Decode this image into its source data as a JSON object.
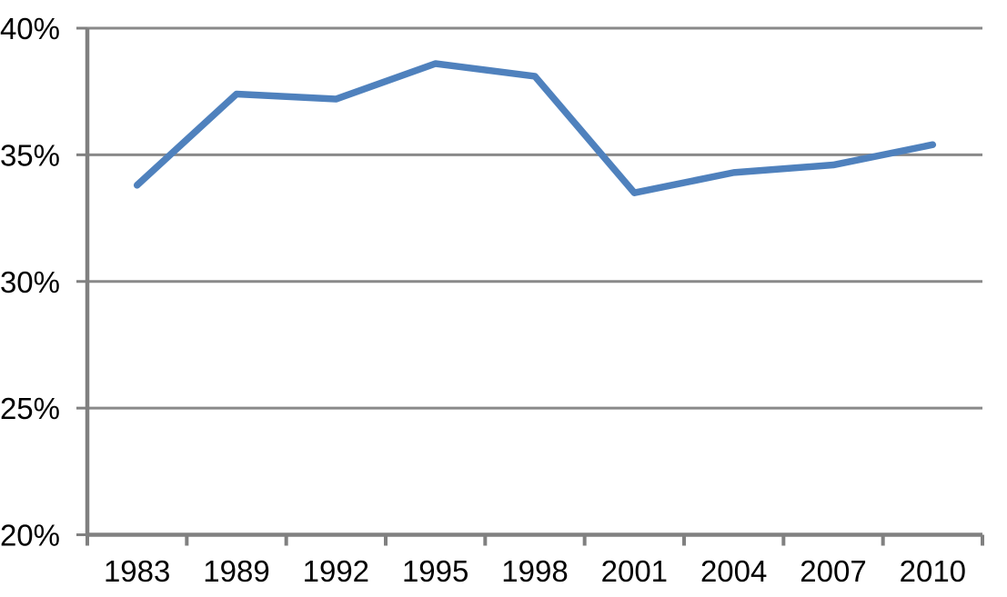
{
  "chart_data": {
    "type": "line",
    "title": "",
    "xlabel": "",
    "ylabel": "",
    "categories": [
      "1983",
      "1989",
      "1992",
      "1995",
      "1998",
      "2001",
      "2004",
      "2007",
      "2010"
    ],
    "values": [
      33.8,
      37.4,
      37.2,
      38.6,
      38.1,
      33.5,
      34.3,
      34.6,
      35.4
    ],
    "ylim": [
      20,
      40
    ],
    "yticks": [
      {
        "value": 40,
        "label": "40%"
      },
      {
        "value": 35,
        "label": "35%"
      },
      {
        "value": 30,
        "label": "30%"
      },
      {
        "value": 25,
        "label": "25%"
      },
      {
        "value": 20,
        "label": "20%"
      }
    ],
    "grid": true,
    "legend": false,
    "colors": {
      "series_line": "#4F81BD",
      "gridline": "#898989",
      "axis": "#808080",
      "tick_label": "#000000",
      "background": "#FFFFFF"
    }
  }
}
